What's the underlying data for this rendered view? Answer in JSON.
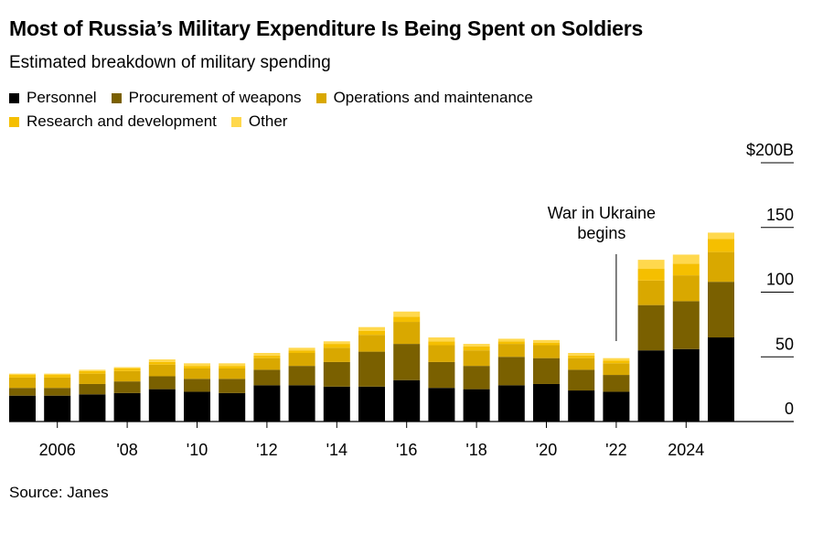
{
  "title": "Most of Russia’s Military Expenditure Is Being Spent on Soldiers",
  "subtitle": "Estimated breakdown of military spending",
  "source": "Source: Janes",
  "colors": {
    "personnel": "#000000",
    "procurement": "#7a6000",
    "operations": "#d9a800",
    "research": "#f5bf00",
    "other": "#ffd84d",
    "axis": "#000000",
    "grid": "#000000"
  },
  "chart_data": {
    "type": "bar",
    "stacked": true,
    "categories": [
      "2005",
      "2006",
      "2007",
      "2008",
      "2009",
      "2010",
      "2011",
      "2012",
      "2013",
      "2014",
      "2015",
      "2016",
      "2017",
      "2018",
      "2019",
      "2020",
      "2021",
      "2022",
      "2023",
      "2024",
      "2025"
    ],
    "series": [
      {
        "name": "Personnel",
        "color_key": "personnel",
        "values": [
          20,
          20,
          21,
          22,
          25,
          23,
          22,
          28,
          28,
          27,
          27,
          32,
          26,
          25,
          28,
          29,
          24,
          23,
          55,
          56,
          65
        ]
      },
      {
        "name": "Procurement of weapons",
        "color_key": "procurement",
        "values": [
          6,
          6,
          8,
          9,
          10,
          10,
          11,
          12,
          15,
          19,
          27,
          28,
          20,
          18,
          22,
          20,
          16,
          13,
          35,
          37,
          43
        ]
      },
      {
        "name": "Operations and maintenance",
        "color_key": "operations",
        "values": [
          8,
          8,
          8,
          8,
          9,
          8,
          8,
          9,
          10,
          11,
          13,
          17,
          13,
          12,
          10,
          10,
          9,
          9,
          19,
          20,
          23
        ]
      },
      {
        "name": "Research and development",
        "color_key": "research",
        "values": [
          2,
          2,
          2,
          2,
          2,
          2,
          2,
          2,
          2,
          3,
          3,
          4,
          3,
          3,
          2,
          2,
          2,
          2,
          9,
          9,
          10
        ]
      },
      {
        "name": "Other",
        "color_key": "other",
        "values": [
          1,
          1,
          1,
          1,
          2,
          2,
          2,
          2,
          2,
          2,
          3,
          4,
          3,
          2,
          2,
          2,
          2,
          2,
          7,
          7,
          5
        ]
      }
    ],
    "x_tick_labels": [
      {
        "category": "2006",
        "label": "2006"
      },
      {
        "category": "2008",
        "label": "'08"
      },
      {
        "category": "2010",
        "label": "'10"
      },
      {
        "category": "2012",
        "label": "'12"
      },
      {
        "category": "2014",
        "label": "'14"
      },
      {
        "category": "2016",
        "label": "'16"
      },
      {
        "category": "2018",
        "label": "'18"
      },
      {
        "category": "2020",
        "label": "'20"
      },
      {
        "category": "2022",
        "label": "'22"
      },
      {
        "category": "2024",
        "label": "2024"
      }
    ],
    "y_ticks": [
      {
        "value": 0,
        "label": "0"
      },
      {
        "value": 50,
        "label": "50"
      },
      {
        "value": 100,
        "label": "100"
      },
      {
        "value": 150,
        "label": "150"
      },
      {
        "value": 200,
        "label": "$200B"
      }
    ],
    "ylim": [
      0,
      200
    ],
    "y_axis_side": "right",
    "annotation": {
      "line1": "War in Ukraine",
      "line2": "begins",
      "category": "2022"
    },
    "legend_position": "top-left"
  }
}
